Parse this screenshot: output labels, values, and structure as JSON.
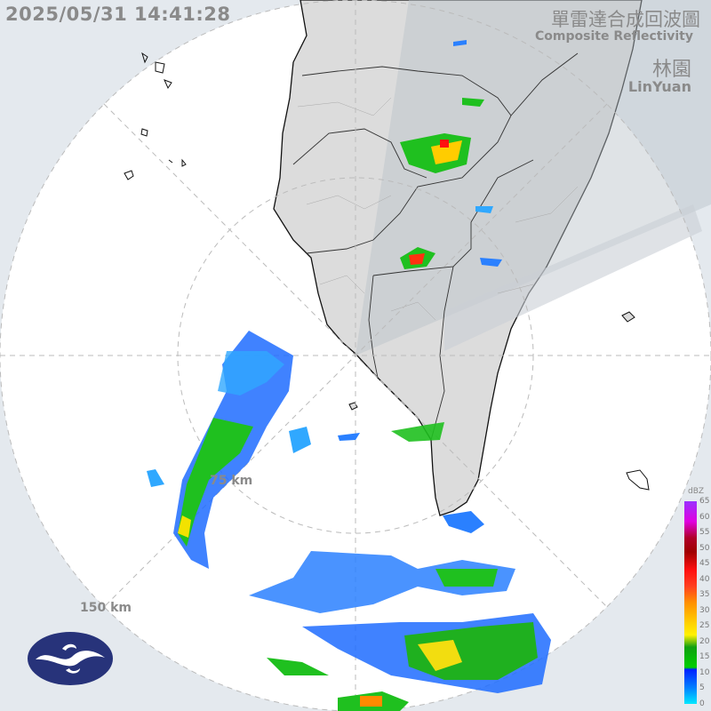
{
  "header": {
    "timestamp": "2025/05/31 14:41:28",
    "title_zh": "單雷達合成回波圖",
    "title_en": "Composite Reflectivity",
    "station_zh": "林園",
    "station_en": "LinYuan"
  },
  "rings": {
    "inner_label": "75 km",
    "outer_label": "150 km"
  },
  "legend": {
    "unit": "dBZ",
    "ticks": [
      "65",
      "60",
      "55",
      "50",
      "45",
      "40",
      "35",
      "30",
      "25",
      "20",
      "15",
      "10",
      "5",
      "0"
    ],
    "colors": [
      "#9b30ff",
      "#e000e0",
      "#a00000",
      "#ff1010",
      "#ff9000",
      "#fff200",
      "#00d000",
      "#0020ff",
      "#00e8ff"
    ]
  },
  "colors": {
    "background": "#e4e9ee",
    "radar_coverage": "#ffffff",
    "land": "#dcdcdc",
    "text": "#8a8a8a"
  }
}
